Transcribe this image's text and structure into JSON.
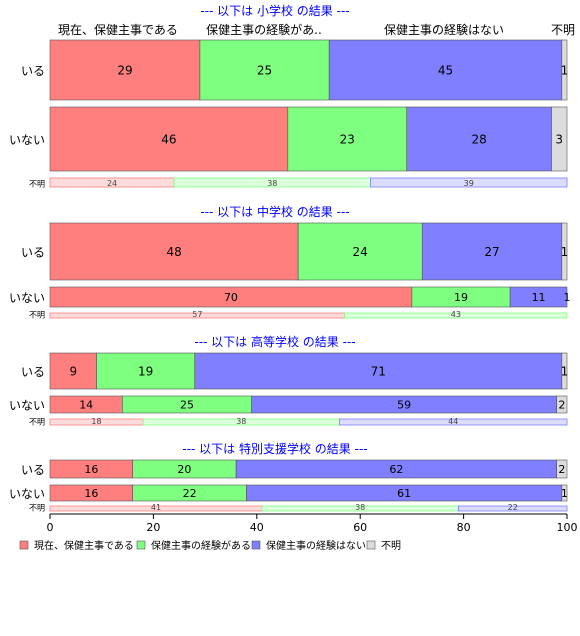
{
  "chart_data": {
    "type": "bar",
    "orientation": "horizontal",
    "stacked": true,
    "series_names": [
      "現在、保健主事である",
      "保健主事の経験がある",
      "保健主事の経験はない",
      "不明"
    ],
    "header_labels": [
      "現在、保健主事である",
      "保健主事の経験があ..",
      "保健主事の経験はない",
      "不明"
    ],
    "colors": [
      "#ff7f7f",
      "#7fff7f",
      "#7f7fff",
      "#dcdcdc"
    ],
    "unknown_row_label": "不明",
    "panels": [
      {
        "title": "--- 以下は 小学校 の結果 ---",
        "rows": [
          {
            "label": "いる",
            "values": [
              29,
              25,
              45,
              1
            ]
          },
          {
            "label": "いない",
            "values": [
              46,
              23,
              28,
              3
            ]
          }
        ],
        "unknown": [
          24,
          38,
          39
        ]
      },
      {
        "title": "--- 以下は 中学校 の結果 ---",
        "rows": [
          {
            "label": "いる",
            "values": [
              48,
              24,
              27,
              1
            ]
          },
          {
            "label": "いない",
            "values": [
              70,
              19,
              11,
              1
            ]
          }
        ],
        "unknown": [
          57,
          43
        ]
      },
      {
        "title": "--- 以下は 高等学校 の結果 ---",
        "rows": [
          {
            "label": "いる",
            "values": [
              9,
              19,
              71,
              1
            ]
          },
          {
            "label": "いない",
            "values": [
              14,
              25,
              59,
              2
            ]
          }
        ],
        "unknown": [
          18,
          38,
          44
        ]
      },
      {
        "title": "--- 以下は 特別支援学校 の結果 ---",
        "rows": [
          {
            "label": "いる",
            "values": [
              16,
              20,
              62,
              2
            ]
          },
          {
            "label": "いない",
            "values": [
              16,
              22,
              61,
              1
            ]
          }
        ],
        "unknown": [
          41,
          38,
          22
        ]
      }
    ],
    "x_axis": {
      "min": 0,
      "max": 100,
      "ticks": [
        0,
        20,
        40,
        60,
        80,
        100
      ]
    },
    "legend_position": "bottom-left"
  }
}
